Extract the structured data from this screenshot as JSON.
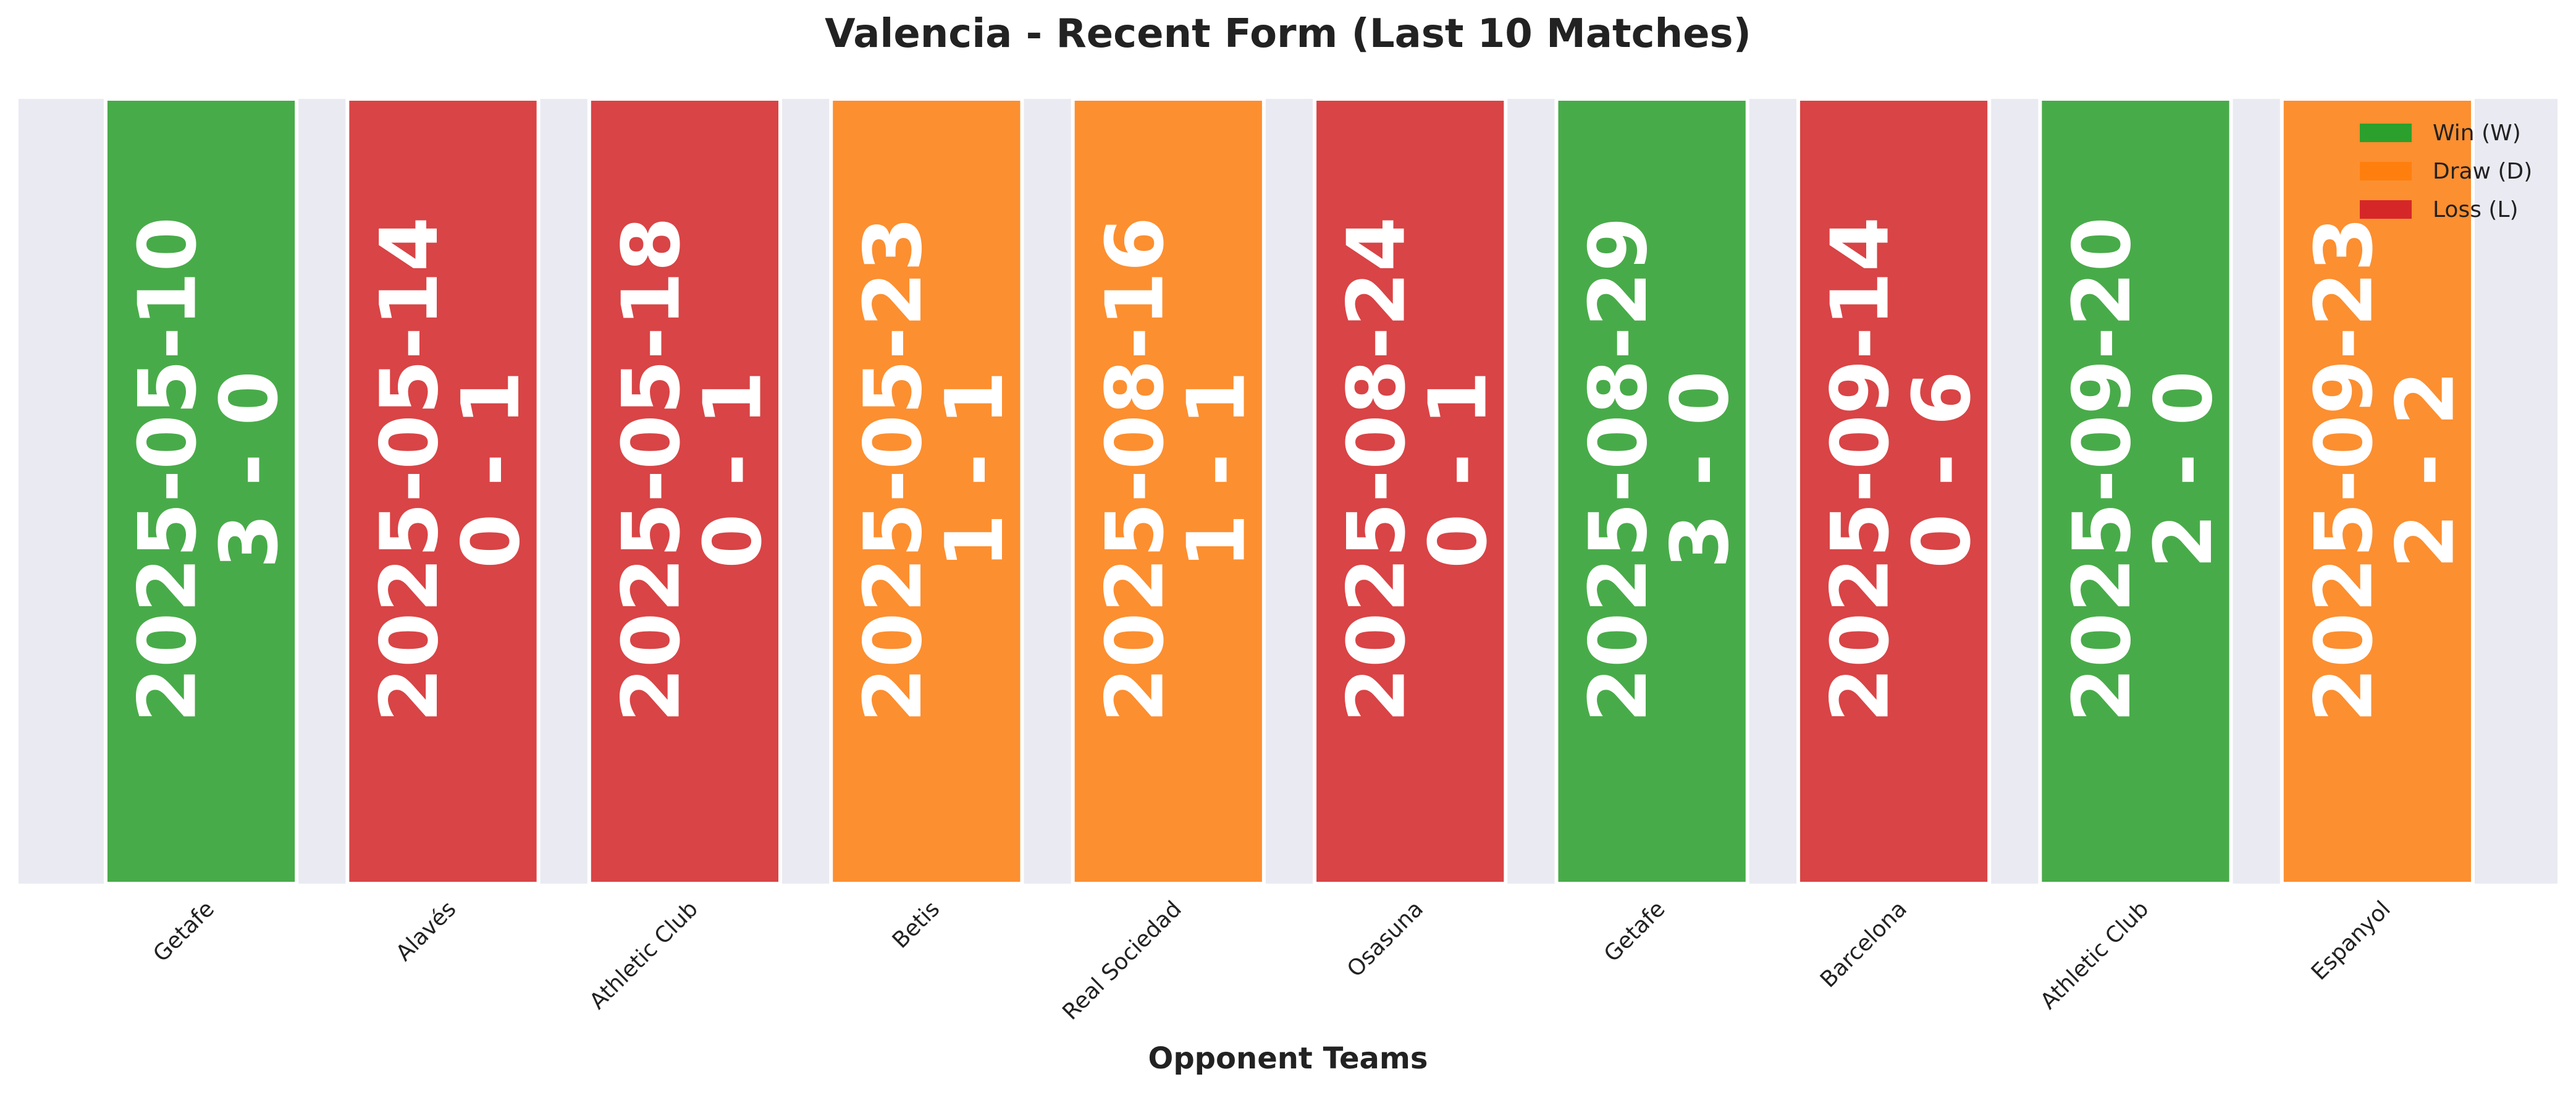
{
  "chart_data": {
    "type": "bar",
    "title": "Valencia - Recent Form (Last 10 Matches)",
    "xlabel": "Opponent Teams",
    "ylabel": "",
    "grid": false,
    "legend_position": "top-right",
    "legend": [
      {
        "result": "W",
        "label": "Win (W)",
        "color": "#2ca02c"
      },
      {
        "result": "D",
        "label": "Draw (D)",
        "color": "#ff7f0e"
      },
      {
        "result": "L",
        "label": "Loss (L)",
        "color": "#d62728"
      }
    ],
    "matches": [
      {
        "opponent": "Getafe",
        "date": "2025-05-10",
        "score": "3 - 0",
        "result": "W"
      },
      {
        "opponent": "Alavés",
        "date": "2025-05-14",
        "score": "0 - 1",
        "result": "L"
      },
      {
        "opponent": "Athletic Club",
        "date": "2025-05-18",
        "score": "0 - 1",
        "result": "L"
      },
      {
        "opponent": "Betis",
        "date": "2025-05-23",
        "score": "1 - 1",
        "result": "D"
      },
      {
        "opponent": "Real Sociedad",
        "date": "2025-08-16",
        "score": "1 - 1",
        "result": "D"
      },
      {
        "opponent": "Osasuna",
        "date": "2025-08-24",
        "score": "0 - 1",
        "result": "L"
      },
      {
        "opponent": "Getafe",
        "date": "2025-08-29",
        "score": "3 - 0",
        "result": "W"
      },
      {
        "opponent": "Barcelona",
        "date": "2025-09-14",
        "score": "0 - 6",
        "result": "L"
      },
      {
        "opponent": "Athletic Club",
        "date": "2025-09-20",
        "score": "2 - 0",
        "result": "W"
      },
      {
        "opponent": "Espanyol",
        "date": "2025-09-23",
        "score": "2 - 2",
        "result": "D"
      }
    ]
  },
  "colors": {
    "plot_background": "#eaeaf2",
    "label_text": "#ffffff",
    "axis_text": "#222222"
  }
}
